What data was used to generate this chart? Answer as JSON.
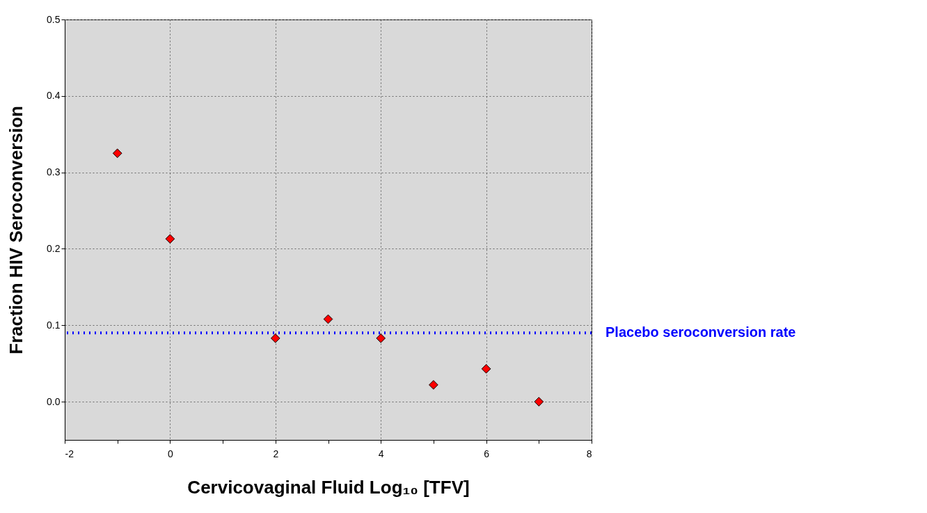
{
  "chart_data": {
    "type": "scatter",
    "xlabel": "Cervicovaginal Fluid Log₁₀ [TFV]",
    "ylabel": "Fraction HIV Seroconversion",
    "x": [
      -1,
      0,
      2,
      3,
      4,
      5,
      6,
      7
    ],
    "series": [
      {
        "color": "#ff0000",
        "values": [
          0.325,
          0.213,
          0.083,
          0.108,
          0.083,
          0.022,
          0.043,
          0.0
        ]
      }
    ],
    "xlim": [
      -2,
      8
    ],
    "ylim": [
      -0.05,
      0.5
    ],
    "xticks": [
      -2,
      {
        "value": -1,
        "label": null
      },
      0,
      {
        "value": 1,
        "label": null
      },
      2,
      {
        "value": 3,
        "label": null
      },
      4,
      {
        "value": 5,
        "label": null
      },
      6,
      {
        "value": 7,
        "label": null
      },
      8
    ],
    "yticks": [
      {
        "value": 0,
        "label": "0.0"
      },
      0.1,
      0.2,
      0.3,
      0.4,
      0.5
    ],
    "grid": true,
    "marker": "diamond",
    "ref_lines": [
      {
        "axis": "y",
        "value": 0.09,
        "label": "Placebo seroconversion rate",
        "color": "#0000ff",
        "line_style": "dotted"
      }
    ]
  }
}
